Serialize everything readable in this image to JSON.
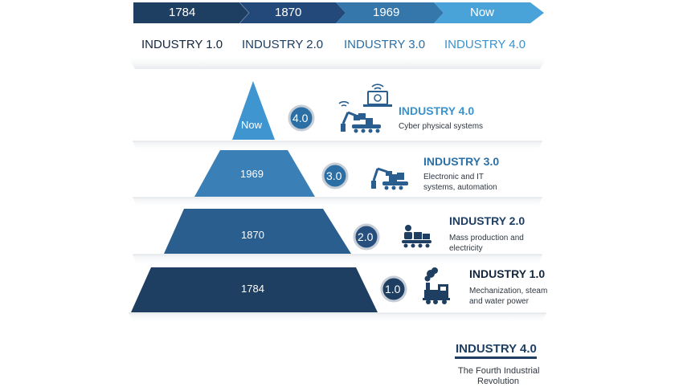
{
  "timeline": {
    "years": [
      "1784",
      "1870",
      "1969",
      "Now"
    ],
    "eras": [
      "INDUSTRY 1.0",
      "INDUSTRY 2.0",
      "INDUSTRY 3.0",
      "INDUSTRY 4.0"
    ]
  },
  "pyramid": [
    {
      "year": "Now",
      "badge": "4.0",
      "title": "INDUSTRY 4.0",
      "desc_line1": "Cyber physical systems",
      "desc_line2": "",
      "icon": "robot-arm-wifi-laptop-icon"
    },
    {
      "year": "1969",
      "badge": "3.0",
      "title": "INDUSTRY 3.0",
      "desc_line1": "Electronic and IT",
      "desc_line2": "systems, automation",
      "icon": "robot-arm-conveyor-icon"
    },
    {
      "year": "1870",
      "badge": "2.0",
      "title": "INDUSTRY 2.0",
      "desc_line1": "Mass production and",
      "desc_line2": "electricity",
      "icon": "worker-conveyor-icon"
    },
    {
      "year": "1784",
      "badge": "1.0",
      "title": "INDUSTRY 1.0",
      "desc_line1": "Mechanization, steam",
      "desc_line2": "and water power",
      "icon": "steam-locomotive-icon"
    }
  ],
  "footer": {
    "title": "INDUSTRY 4.0",
    "subtitle_line1": "The Fourth Industrial",
    "subtitle_line2": "Revolution"
  },
  "colors": {
    "navy": "#1e3e62",
    "mid_blue": "#2a5e8e",
    "steel_blue": "#3a7fb5",
    "light_blue": "#4aa3d8"
  }
}
